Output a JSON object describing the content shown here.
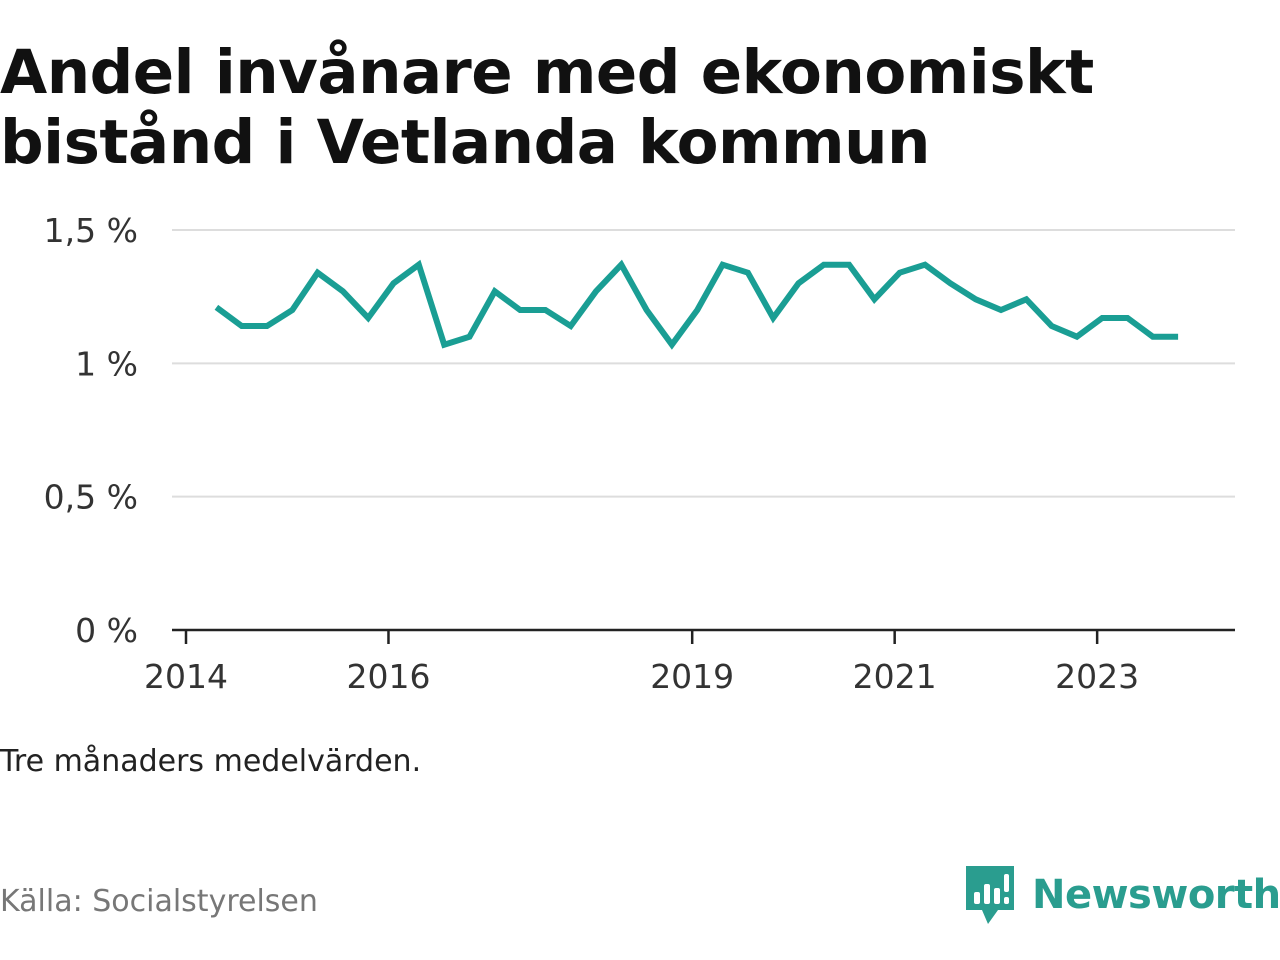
{
  "title": "Andel invånare med ekonomiskt bistånd i Vetlanda kommun",
  "subtitle": "Tre månaders medelvärden.",
  "source": "Källa: Socialstyrelsen",
  "brand": "Newsworthy",
  "colors": {
    "line": "#1a9e94",
    "grid": "#dddddd",
    "axis": "#222222",
    "brand": "#2a9d8f"
  },
  "chart_data": {
    "type": "line",
    "title": "Andel invånare med ekonomiskt bistånd i Vetlanda kommun",
    "xlabel": "",
    "ylabel": "",
    "xlim": [
      2014.0,
      2024.5
    ],
    "ylim": [
      0,
      1.5
    ],
    "y_ticks": [
      0,
      0.5,
      1,
      1.5
    ],
    "y_tick_labels": [
      "0 %",
      "0,5 %",
      "1 %",
      "1,5 %"
    ],
    "x_ticks": [
      2014,
      2016,
      2019,
      2021,
      2023
    ],
    "x_tick_labels": [
      "2014",
      "2016",
      "2019",
      "2021",
      "2023"
    ],
    "series": [
      {
        "name": "Andel invånare med ekonomiskt bistånd",
        "x": [
          2014.3,
          2014.55,
          2014.8,
          2015.05,
          2015.3,
          2015.55,
          2015.8,
          2016.05,
          2016.3,
          2016.55,
          2016.8,
          2017.05,
          2017.3,
          2017.55,
          2017.8,
          2018.05,
          2018.3,
          2018.55,
          2018.8,
          2019.05,
          2019.3,
          2019.55,
          2019.8,
          2020.05,
          2020.3,
          2020.55,
          2020.8,
          2021.05,
          2021.3,
          2021.55,
          2021.8,
          2022.05,
          2022.3,
          2022.55,
          2022.8,
          2023.05,
          2023.3,
          2023.55,
          2023.8
        ],
        "values": [
          1.21,
          1.14,
          1.14,
          1.2,
          1.34,
          1.27,
          1.17,
          1.3,
          1.37,
          1.07,
          1.1,
          1.27,
          1.2,
          1.2,
          1.14,
          1.27,
          1.37,
          1.2,
          1.07,
          1.2,
          1.37,
          1.34,
          1.17,
          1.3,
          1.37,
          1.37,
          1.24,
          1.34,
          1.37,
          1.3,
          1.24,
          1.2,
          1.24,
          1.14,
          1.1,
          1.17,
          1.17,
          1.1,
          1.1
        ]
      }
    ]
  }
}
